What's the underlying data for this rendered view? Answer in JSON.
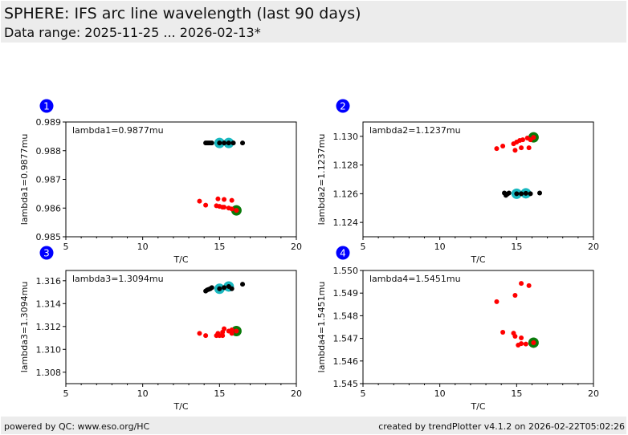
{
  "header": {
    "title": "SPHERE: IFS arc line wavelength (last 90 days)",
    "subtitle": "Data range: 2025-11-25 ... 2026-02-13*"
  },
  "footer": {
    "left": "powered by QC: www.eso.org/HC",
    "right": "created by trendPlotter v4.1.2 on 2026-02-22T05:02:26"
  },
  "colors": {
    "badge": "#0000ff",
    "black_points": "#000000",
    "red_points": "#ff0000",
    "highlight_cyan": "#1ab8c0",
    "highlight_green": "#0a7a0a",
    "header_bg": "#ececec"
  },
  "chart_data": [
    {
      "type": "scatter",
      "panel": "1",
      "annotation": "lambda1=0.9877mu",
      "xlabel": "T/C",
      "ylabel": "lambda1=0.9877mu",
      "xlim": [
        5,
        20
      ],
      "ylim": [
        0.985,
        0.989
      ],
      "xticks": [
        5,
        10,
        15,
        20
      ],
      "yticks": [
        0.985,
        0.986,
        0.987,
        0.988,
        0.989
      ],
      "ytick_labels": [
        "0.985",
        "0.986",
        "0.987",
        "0.988",
        "0.989"
      ],
      "series": [
        {
          "name": "black",
          "color": "black",
          "points": [
            [
              14.1,
              0.98827
            ],
            [
              14.2,
              0.98827
            ],
            [
              14.3,
              0.98827
            ],
            [
              14.4,
              0.98827
            ],
            [
              14.5,
              0.98827
            ],
            [
              15.0,
              0.98827
            ],
            [
              15.3,
              0.98827
            ],
            [
              15.6,
              0.98827
            ],
            [
              15.9,
              0.98827
            ],
            [
              16.5,
              0.98827
            ]
          ]
        },
        {
          "name": "black-highlight",
          "color": "cyan",
          "points": [
            [
              15.0,
              0.98827
            ],
            [
              15.6,
              0.98827
            ]
          ]
        },
        {
          "name": "red",
          "color": "red",
          "points": [
            [
              13.7,
              0.98624
            ],
            [
              14.1,
              0.9861
            ],
            [
              14.9,
              0.98632
            ],
            [
              15.3,
              0.9863
            ],
            [
              15.8,
              0.98627
            ],
            [
              14.8,
              0.98608
            ],
            [
              15.0,
              0.98606
            ],
            [
              15.2,
              0.98603
            ],
            [
              15.3,
              0.98603
            ],
            [
              15.6,
              0.986
            ],
            [
              15.8,
              0.98597
            ],
            [
              16.1,
              0.98592
            ]
          ]
        },
        {
          "name": "red-highlight",
          "color": "green",
          "points": [
            [
              16.1,
              0.98592
            ]
          ]
        }
      ]
    },
    {
      "type": "scatter",
      "panel": "2",
      "annotation": "lambda2=1.1237mu",
      "xlabel": "T/C",
      "ylabel": "lambda2=1.1237mu",
      "xlim": [
        5,
        20
      ],
      "ylim": [
        1.123,
        1.131
      ],
      "xticks": [
        5,
        10,
        15,
        20
      ],
      "yticks": [
        1.124,
        1.126,
        1.128,
        1.13
      ],
      "ytick_labels": [
        "1.124",
        "1.126",
        "1.128",
        "1.130"
      ],
      "series": [
        {
          "name": "black",
          "color": "black",
          "points": [
            [
              14.2,
              1.12605
            ],
            [
              14.3,
              1.12589
            ],
            [
              14.4,
              1.12598
            ],
            [
              14.5,
              1.12605
            ],
            [
              15.0,
              1.126
            ],
            [
              15.3,
              1.126
            ],
            [
              15.6,
              1.12603
            ],
            [
              15.9,
              1.126
            ],
            [
              16.5,
              1.12605
            ]
          ]
        },
        {
          "name": "black-highlight",
          "color": "cyan",
          "points": [
            [
              15.0,
              1.126
            ],
            [
              15.6,
              1.12603
            ]
          ]
        },
        {
          "name": "red",
          "color": "red",
          "points": [
            [
              13.7,
              1.12915
            ],
            [
              14.1,
              1.12932
            ],
            [
              14.9,
              1.12903
            ],
            [
              15.3,
              1.1292
            ],
            [
              15.8,
              1.1292
            ],
            [
              14.8,
              1.12948
            ],
            [
              15.0,
              1.1296
            ],
            [
              15.2,
              1.12971
            ],
            [
              15.4,
              1.12976
            ],
            [
              15.7,
              1.12988
            ],
            [
              15.9,
              1.12976
            ],
            [
              16.1,
              1.12993
            ]
          ]
        },
        {
          "name": "red-highlight",
          "color": "green",
          "points": [
            [
              16.1,
              1.12993
            ]
          ]
        }
      ]
    },
    {
      "type": "scatter",
      "panel": "3",
      "annotation": "lambda3=1.3094mu",
      "xlabel": "T/C",
      "ylabel": "lambda3=1.3094mu",
      "xlim": [
        5,
        20
      ],
      "ylim": [
        1.307,
        1.3169
      ],
      "xticks": [
        5,
        10,
        15,
        20
      ],
      "yticks": [
        1.308,
        1.31,
        1.312,
        1.314,
        1.316
      ],
      "ytick_labels": [
        "1.308",
        "1.310",
        "1.312",
        "1.314",
        "1.316"
      ],
      "series": [
        {
          "name": "black",
          "color": "black",
          "points": [
            [
              14.1,
              1.3151
            ],
            [
              14.2,
              1.3152
            ],
            [
              14.3,
              1.31525
            ],
            [
              14.4,
              1.3153
            ],
            [
              14.5,
              1.3154
            ],
            [
              15.0,
              1.3153
            ],
            [
              15.3,
              1.3154
            ],
            [
              15.6,
              1.3155
            ],
            [
              15.8,
              1.3153
            ],
            [
              16.5,
              1.3157
            ]
          ]
        },
        {
          "name": "black-highlight",
          "color": "cyan",
          "points": [
            [
              15.0,
              1.3153
            ],
            [
              15.6,
              1.3155
            ]
          ]
        },
        {
          "name": "red",
          "color": "red",
          "points": [
            [
              13.7,
              1.3114
            ],
            [
              14.1,
              1.3112
            ],
            [
              14.8,
              1.3112
            ],
            [
              14.9,
              1.3114
            ],
            [
              15.0,
              1.3112
            ],
            [
              15.2,
              1.3115
            ],
            [
              15.3,
              1.3118
            ],
            [
              15.2,
              1.3112
            ],
            [
              15.6,
              1.3116
            ],
            [
              15.8,
              1.3117
            ],
            [
              15.8,
              1.3114
            ],
            [
              16.1,
              1.3116
            ]
          ]
        },
        {
          "name": "red-highlight",
          "color": "green",
          "points": [
            [
              16.1,
              1.3116
            ]
          ]
        }
      ]
    },
    {
      "type": "scatter",
      "panel": "4",
      "annotation": "lambda4=1.5451mu",
      "xlabel": "T/C",
      "ylabel": "lambda4=1.5451mu",
      "xlim": [
        5,
        20
      ],
      "ylim": [
        1.545,
        1.55
      ],
      "xticks": [
        5,
        10,
        15,
        20
      ],
      "yticks": [
        1.545,
        1.546,
        1.547,
        1.548,
        1.549,
        1.55
      ],
      "ytick_labels": [
        "1.545",
        "1.546",
        "1.547",
        "1.548",
        "1.549",
        "1.550"
      ],
      "series": [
        {
          "name": "red",
          "color": "red",
          "points": [
            [
              15.3,
              1.54943
            ],
            [
              15.8,
              1.54933
            ],
            [
              14.9,
              1.5489
            ],
            [
              13.7,
              1.54862
            ],
            [
              14.1,
              1.54727
            ],
            [
              14.8,
              1.54723
            ],
            [
              14.9,
              1.54709
            ],
            [
              15.3,
              1.54702
            ],
            [
              15.1,
              1.5467
            ],
            [
              15.3,
              1.54677
            ],
            [
              15.6,
              1.54675
            ],
            [
              16.1,
              1.54681
            ]
          ]
        },
        {
          "name": "red-highlight",
          "color": "green",
          "points": [
            [
              16.1,
              1.54681
            ]
          ]
        }
      ]
    }
  ]
}
